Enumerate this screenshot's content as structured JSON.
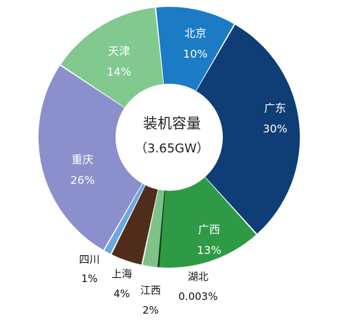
{
  "chart_data": {
    "type": "pie",
    "style": "donut",
    "center_title": "装机容量",
    "center_subtitle": "（3.65GW）",
    "slices": [
      {
        "name": "广东",
        "value": 30,
        "label": "30%",
        "color": "#0e3e75",
        "label_placement": "inside"
      },
      {
        "name": "广西",
        "value": 13,
        "label": "13%",
        "color": "#2f9a45",
        "label_placement": "inside"
      },
      {
        "name": "湖北",
        "value": 0.003,
        "label": "0.003%",
        "color": "#0b3a1a",
        "label_placement": "outside"
      },
      {
        "name": "江西",
        "value": 2,
        "label": "2%",
        "color": "#7dc288",
        "label_placement": "outside"
      },
      {
        "name": "上海",
        "value": 4,
        "label": "4%",
        "color": "#4f2d1a",
        "label_placement": "outside"
      },
      {
        "name": "四川",
        "value": 1,
        "label": "1%",
        "color": "#6aa9e0",
        "label_placement": "outside"
      },
      {
        "name": "重庆",
        "value": 26,
        "label": "26%",
        "color": "#8b8fcb",
        "label_placement": "inside"
      },
      {
        "name": "天津",
        "value": 14,
        "label": "14%",
        "color": "#82c98f",
        "label_placement": "inside"
      },
      {
        "name": "北京",
        "value": 10,
        "label": "10%",
        "color": "#1b7bc4",
        "label_placement": "inside"
      }
    ]
  }
}
